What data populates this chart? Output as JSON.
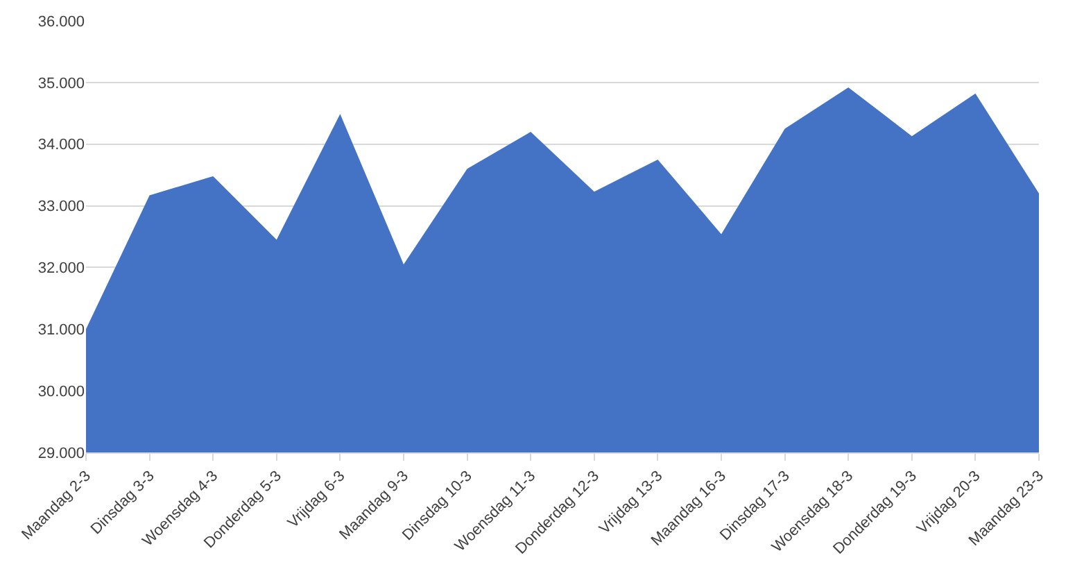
{
  "chart_data": {
    "type": "area",
    "categories": [
      "Maandag 2-3",
      "Dinsdag 3-3",
      "Woensdag 4-3",
      "Donderdag 5-3",
      "Vrijdag 6-3",
      "Maandag 9-3",
      "Dinsdag 10-3",
      "Woensdag 11-3",
      "Donderdag 12-3",
      "Vrijdag 13-3",
      "Maandag 16-3",
      "Dinsdag 17-3",
      "Woensdag 18-3",
      "Donderdag 19-3",
      "Vrijdag 20-3",
      "Maandag 23-3"
    ],
    "series": [
      {
        "color": "#4472c4",
        "values": [
          31000,
          33170,
          33480,
          32450,
          34490,
          32050,
          33600,
          34200,
          33230,
          33750,
          32540,
          34250,
          34920,
          34130,
          34820,
          33200
        ]
      }
    ],
    "ylim": [
      29000,
      36000
    ],
    "yticks": [
      {
        "value": 29000,
        "label": "29.000"
      },
      {
        "value": 30000,
        "label": "30.000"
      },
      {
        "value": 31000,
        "label": "31.000"
      },
      {
        "value": 32000,
        "label": "32.000"
      },
      {
        "value": 33000,
        "label": "33.000"
      },
      {
        "value": 34000,
        "label": "34.000"
      },
      {
        "value": 35000,
        "label": "35.000"
      },
      {
        "value": 36000,
        "label": "36.000"
      }
    ],
    "grid": "y"
  }
}
